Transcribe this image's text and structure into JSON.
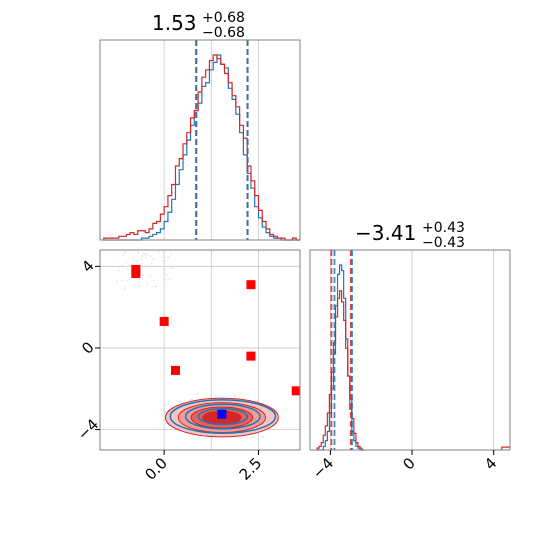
{
  "chart_data": [
    {
      "type": "histogram",
      "panel": "x-marginal",
      "title": {
        "main": "1.53",
        "sup": "+0.68",
        "sub": "−0.68"
      },
      "xlim": [
        -1.7,
        3.6
      ],
      "grid": true,
      "quantiles": {
        "blue": [
          0.85,
          2.21
        ],
        "red": [
          0.85,
          2.21
        ]
      },
      "bin_centers": [
        -1.55,
        -1.45,
        -1.35,
        -1.25,
        -1.15,
        -1.05,
        -0.95,
        -0.85,
        -0.75,
        -0.65,
        -0.55,
        -0.45,
        -0.35,
        -0.25,
        -0.15,
        -0.05,
        0.05,
        0.15,
        0.25,
        0.35,
        0.45,
        0.55,
        0.65,
        0.75,
        0.85,
        0.95,
        1.05,
        1.15,
        1.25,
        1.35,
        1.45,
        1.55,
        1.65,
        1.75,
        1.85,
        1.95,
        2.05,
        2.15,
        2.25,
        2.35,
        2.45,
        2.55,
        2.65,
        2.75,
        2.85,
        2.95,
        3.05,
        3.15,
        3.25,
        3.35,
        3.45,
        3.55
      ],
      "series": [
        {
          "color": "#1f77b4",
          "values": [
            0,
            0,
            0,
            0,
            0,
            0,
            0,
            0,
            0,
            0,
            0.01,
            0.01,
            0.02,
            0.03,
            0.04,
            0.06,
            0.1,
            0.15,
            0.22,
            0.3,
            0.38,
            0.46,
            0.54,
            0.62,
            0.7,
            0.74,
            0.83,
            0.85,
            0.92,
            0.96,
            1.0,
            0.95,
            0.93,
            0.82,
            0.76,
            0.68,
            0.58,
            0.46,
            0.36,
            0.28,
            0.18,
            0.12,
            0.07,
            0.04,
            0.02,
            0.01,
            0.01,
            0,
            0,
            0,
            0,
            0
          ]
        },
        {
          "color": "#d62728",
          "values": [
            0.01,
            0.01,
            0.01,
            0.01,
            0.02,
            0.02,
            0.03,
            0.04,
            0.03,
            0.05,
            0.05,
            0.04,
            0.06,
            0.09,
            0.1,
            0.14,
            0.18,
            0.24,
            0.3,
            0.4,
            0.44,
            0.52,
            0.58,
            0.66,
            0.7,
            0.8,
            0.88,
            0.92,
            0.97,
            1.0,
            0.98,
            0.95,
            0.9,
            0.85,
            0.78,
            0.72,
            0.62,
            0.55,
            0.4,
            0.32,
            0.24,
            0.16,
            0.1,
            0.06,
            0.03,
            0.02,
            0.01,
            0.01,
            0,
            0,
            0.01,
            0
          ]
        }
      ]
    },
    {
      "type": "scatter",
      "panel": "joint",
      "xlim": [
        -1.7,
        3.6
      ],
      "ylim": [
        -5.0,
        4.8
      ],
      "x_ticks": [
        "0.0",
        "2.5"
      ],
      "y_ticks": [
        "−4",
        "0",
        "4"
      ],
      "grid": true,
      "red_squares": [
        [
          -0.75,
          3.65
        ],
        [
          -0.75,
          3.85
        ],
        [
          0.0,
          1.3
        ],
        [
          2.3,
          3.1
        ],
        [
          0.3,
          -1.1
        ],
        [
          2.3,
          -0.4
        ],
        [
          3.5,
          -2.1
        ]
      ],
      "blue_square": [
        1.53,
        -3.25
      ],
      "contour_center": [
        1.53,
        -3.41
      ],
      "contour_sigma": [
        0.68,
        0.43
      ]
    },
    {
      "type": "histogram",
      "panel": "y-marginal",
      "title": {
        "main": "−3.41",
        "sup": "+0.43",
        "sub": "−0.43"
      },
      "xlim": [
        -5.0,
        4.8
      ],
      "x_ticks": [
        "−4",
        "0",
        "4"
      ],
      "grid": true,
      "quantiles": {
        "blue": [
          -3.8,
          -2.94
        ],
        "red": [
          -3.95,
          -3.0
        ]
      },
      "bin_centers": [
        -4.6,
        -4.5,
        -4.4,
        -4.3,
        -4.2,
        -4.1,
        -4.0,
        -3.9,
        -3.8,
        -3.7,
        -3.6,
        -3.5,
        -3.4,
        -3.3,
        -3.2,
        -3.1,
        -3.0,
        -2.9,
        -2.8,
        -2.7,
        -2.6,
        -2.5,
        -2.4
      ],
      "series": [
        {
          "color": "#1f77b4",
          "values": [
            0,
            0,
            0,
            0.02,
            0.05,
            0.1,
            0.2,
            0.33,
            0.52,
            0.78,
            0.95,
            1.0,
            0.97,
            0.82,
            0.6,
            0.4,
            0.22,
            0.1,
            0.05,
            0.02,
            0.01,
            0,
            0
          ]
        },
        {
          "color": "#d62728",
          "values": [
            0.01,
            0.02,
            0.04,
            0.08,
            0.13,
            0.2,
            0.3,
            0.42,
            0.58,
            0.72,
            0.82,
            0.86,
            0.8,
            0.7,
            0.55,
            0.4,
            0.28,
            0.17,
            0.09,
            0.04,
            0.02,
            0.01,
            0
          ]
        }
      ],
      "tail_bins": [
        {
          "x": 4.6,
          "red": 0.01
        }
      ]
    }
  ]
}
